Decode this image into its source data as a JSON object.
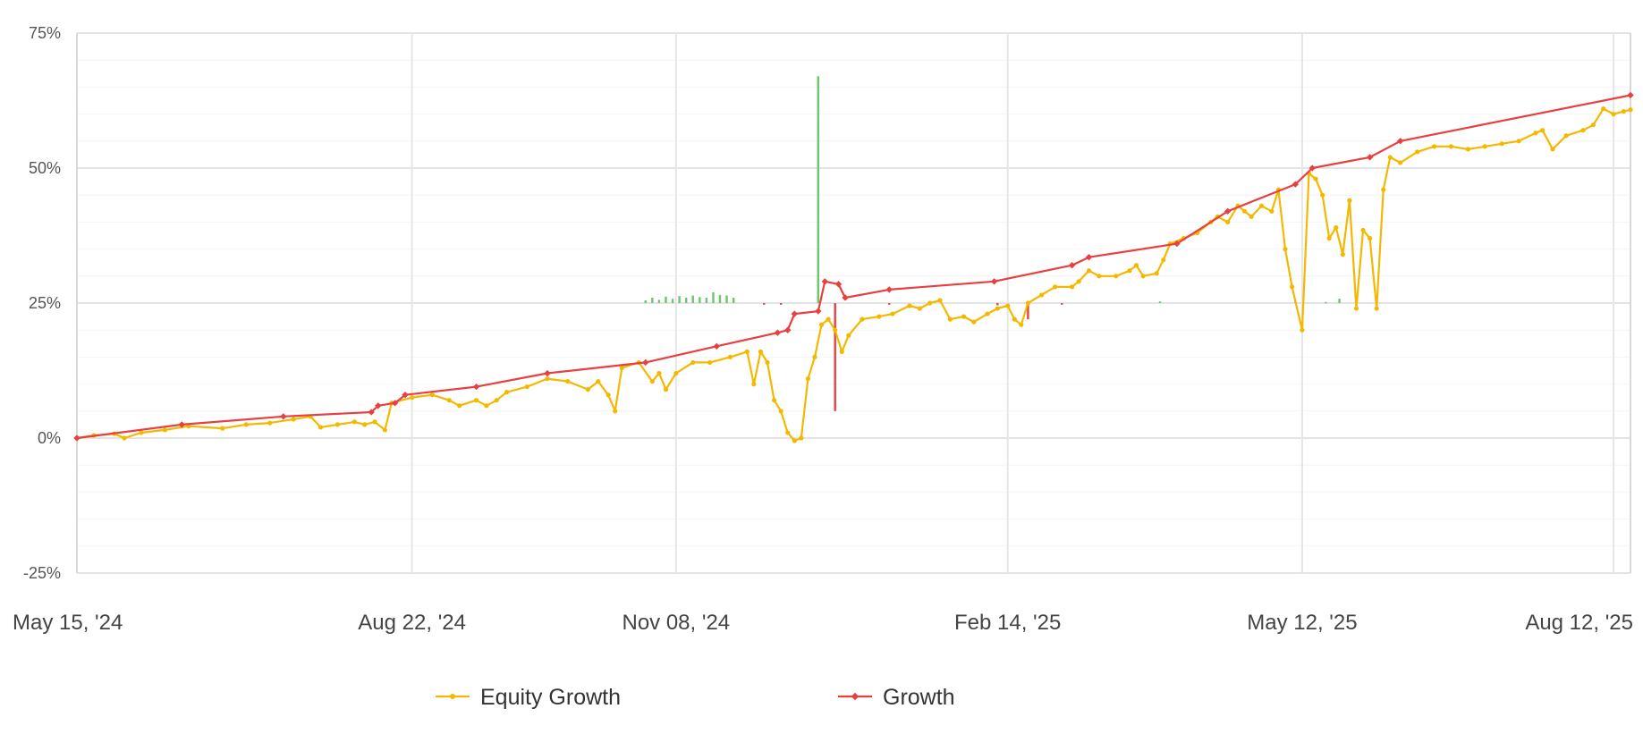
{
  "chart_data": {
    "type": "line",
    "title": "",
    "xlabel": "",
    "ylabel": "",
    "x_range": [
      "2024-05-15",
      "2025-08-17"
    ],
    "ylim": [
      -25,
      75
    ],
    "y_ticks": [
      -25,
      0,
      25,
      50,
      75
    ],
    "y_tick_labels": [
      "-25%",
      "0%",
      "25%",
      "50%",
      "75%"
    ],
    "y_minor_step": 5,
    "x_ticks": [
      "2024-05-15",
      "2024-08-22",
      "2024-11-08",
      "2025-02-14",
      "2025-05-12",
      "2025-08-12"
    ],
    "x_tick_labels": [
      "May 15, '24",
      "Aug 22, '24",
      "Nov 08, '24",
      "Feb 14, '25",
      "May 12, '25",
      "Aug 12, '25"
    ],
    "grid": true,
    "legend_position": "bottom-center",
    "series": [
      {
        "name": "Equity Growth",
        "color": "#f5b800",
        "points": [
          [
            "2024-05-15",
            0
          ],
          [
            "2024-05-20",
            0.5
          ],
          [
            "2024-05-26",
            0.8
          ],
          [
            "2024-05-29",
            0
          ],
          [
            "2024-06-03",
            1
          ],
          [
            "2024-06-10",
            1.5
          ],
          [
            "2024-06-17",
            2.2
          ],
          [
            "2024-06-27",
            1.8
          ],
          [
            "2024-07-04",
            2.5
          ],
          [
            "2024-07-11",
            2.8
          ],
          [
            "2024-07-18",
            3.5
          ],
          [
            "2024-07-23",
            4
          ],
          [
            "2024-07-26",
            2
          ],
          [
            "2024-07-31",
            2.5
          ],
          [
            "2024-08-05",
            3
          ],
          [
            "2024-08-08",
            2.5
          ],
          [
            "2024-08-11",
            3
          ],
          [
            "2024-08-14",
            1.5
          ],
          [
            "2024-08-16",
            6.5
          ],
          [
            "2024-08-22",
            7.5
          ],
          [
            "2024-08-28",
            8
          ],
          [
            "2024-09-02",
            7
          ],
          [
            "2024-09-05",
            6
          ],
          [
            "2024-09-10",
            7
          ],
          [
            "2024-09-13",
            6
          ],
          [
            "2024-09-16",
            7
          ],
          [
            "2024-09-19",
            8.5
          ],
          [
            "2024-09-25",
            9.5
          ],
          [
            "2024-10-01",
            11
          ],
          [
            "2024-10-07",
            10.5
          ],
          [
            "2024-10-13",
            9
          ],
          [
            "2024-10-16",
            10.5
          ],
          [
            "2024-10-19",
            8
          ],
          [
            "2024-10-21",
            5
          ],
          [
            "2024-10-23",
            13
          ],
          [
            "2024-10-28",
            14
          ],
          [
            "2024-11-01",
            10.5
          ],
          [
            "2024-11-03",
            12
          ],
          [
            "2024-11-05",
            9
          ],
          [
            "2024-11-08",
            12
          ],
          [
            "2024-11-13",
            14
          ],
          [
            "2024-11-18",
            14
          ],
          [
            "2024-11-24",
            15
          ],
          [
            "2024-11-29",
            16
          ],
          [
            "2024-12-01",
            10
          ],
          [
            "2024-12-03",
            16
          ],
          [
            "2024-12-05",
            14
          ],
          [
            "2024-12-07",
            7
          ],
          [
            "2024-12-09",
            5
          ],
          [
            "2024-12-11",
            1
          ],
          [
            "2024-12-13",
            -0.5
          ],
          [
            "2024-12-15",
            0
          ],
          [
            "2024-12-17",
            11
          ],
          [
            "2024-12-19",
            15
          ],
          [
            "2024-12-21",
            21
          ],
          [
            "2024-12-23",
            22
          ],
          [
            "2024-12-25",
            20
          ],
          [
            "2024-12-27",
            16
          ],
          [
            "2024-12-29",
            19
          ],
          [
            "2025-01-02",
            22
          ],
          [
            "2025-01-07",
            22.5
          ],
          [
            "2025-01-11",
            23
          ],
          [
            "2025-01-16",
            24.5
          ],
          [
            "2025-01-19",
            24
          ],
          [
            "2025-01-22",
            25
          ],
          [
            "2025-01-25",
            25.5
          ],
          [
            "2025-01-28",
            22
          ],
          [
            "2025-02-01",
            22.5
          ],
          [
            "2025-02-04",
            21.5
          ],
          [
            "2025-02-08",
            23
          ],
          [
            "2025-02-11",
            24
          ],
          [
            "2025-02-14",
            24.5
          ],
          [
            "2025-02-16",
            22
          ],
          [
            "2025-02-18",
            21
          ],
          [
            "2025-02-20",
            25
          ],
          [
            "2025-02-24",
            26.5
          ],
          [
            "2025-02-28",
            28
          ],
          [
            "2025-03-05",
            28
          ],
          [
            "2025-03-07",
            29
          ],
          [
            "2025-03-10",
            31
          ],
          [
            "2025-03-13",
            30
          ],
          [
            "2025-03-18",
            30
          ],
          [
            "2025-03-22",
            31
          ],
          [
            "2025-03-24",
            32
          ],
          [
            "2025-03-26",
            30
          ],
          [
            "2025-03-30",
            30.5
          ],
          [
            "2025-04-01",
            33
          ],
          [
            "2025-04-03",
            36
          ],
          [
            "2025-04-07",
            37
          ],
          [
            "2025-04-11",
            38
          ],
          [
            "2025-04-15",
            40
          ],
          [
            "2025-04-17",
            41
          ],
          [
            "2025-04-20",
            40
          ],
          [
            "2025-04-23",
            43
          ],
          [
            "2025-04-25",
            42
          ],
          [
            "2025-04-27",
            41
          ],
          [
            "2025-04-30",
            43
          ],
          [
            "2025-05-03",
            42
          ],
          [
            "2025-05-05",
            46
          ],
          [
            "2025-05-07",
            35
          ],
          [
            "2025-05-09",
            28
          ],
          [
            "2025-05-12",
            20
          ],
          [
            "2025-05-14",
            49
          ],
          [
            "2025-05-16",
            48
          ],
          [
            "2025-05-18",
            45
          ],
          [
            "2025-05-20",
            37
          ],
          [
            "2025-05-22",
            39
          ],
          [
            "2025-05-24",
            34
          ],
          [
            "2025-05-26",
            44
          ],
          [
            "2025-05-28",
            24
          ],
          [
            "2025-05-30",
            38.5
          ],
          [
            "2025-06-01",
            37
          ],
          [
            "2025-06-03",
            24
          ],
          [
            "2025-06-05",
            46
          ],
          [
            "2025-06-07",
            52
          ],
          [
            "2025-06-10",
            51
          ],
          [
            "2025-06-15",
            53
          ],
          [
            "2025-06-20",
            54
          ],
          [
            "2025-06-25",
            54
          ],
          [
            "2025-06-30",
            53.5
          ],
          [
            "2025-07-05",
            54
          ],
          [
            "2025-07-10",
            54.5
          ],
          [
            "2025-07-15",
            55
          ],
          [
            "2025-07-20",
            56.5
          ],
          [
            "2025-07-22",
            57
          ],
          [
            "2025-07-25",
            53.5
          ],
          [
            "2025-07-29",
            56
          ],
          [
            "2025-08-03",
            57
          ],
          [
            "2025-08-06",
            58
          ],
          [
            "2025-08-09",
            61
          ],
          [
            "2025-08-12",
            60
          ],
          [
            "2025-08-15",
            60.5
          ],
          [
            "2025-08-17",
            60.8
          ]
        ]
      },
      {
        "name": "Growth",
        "color": "#e84040",
        "points": [
          [
            "2024-05-15",
            0
          ],
          [
            "2024-06-15",
            2.5
          ],
          [
            "2024-07-15",
            4
          ],
          [
            "2024-08-10",
            4.8
          ],
          [
            "2024-08-12",
            6
          ],
          [
            "2024-08-17",
            6.5
          ],
          [
            "2024-08-20",
            8
          ],
          [
            "2024-09-10",
            9.5
          ],
          [
            "2024-10-01",
            12
          ],
          [
            "2024-10-30",
            14
          ],
          [
            "2024-11-20",
            17
          ],
          [
            "2024-12-08",
            19.5
          ],
          [
            "2024-12-11",
            20
          ],
          [
            "2024-12-13",
            23
          ],
          [
            "2024-12-20",
            23.5
          ],
          [
            "2024-12-22",
            29
          ],
          [
            "2024-12-26",
            28.5
          ],
          [
            "2024-12-28",
            26
          ],
          [
            "2025-01-10",
            27.5
          ],
          [
            "2025-02-10",
            29
          ],
          [
            "2025-03-05",
            32
          ],
          [
            "2025-03-10",
            33.5
          ],
          [
            "2025-04-05",
            36
          ],
          [
            "2025-04-20",
            42
          ],
          [
            "2025-05-10",
            47
          ],
          [
            "2025-05-15",
            50
          ],
          [
            "2025-06-01",
            52
          ],
          [
            "2025-06-10",
            55
          ],
          [
            "2025-08-17",
            63.5
          ]
        ]
      }
    ],
    "bars": [
      [
        "2024-10-30",
        0.5
      ],
      [
        "2024-11-01",
        1.0
      ],
      [
        "2024-11-03",
        0.6
      ],
      [
        "2024-11-05",
        1.2
      ],
      [
        "2024-11-07",
        0.8
      ],
      [
        "2024-11-09",
        1.3
      ],
      [
        "2024-11-11",
        1.0
      ],
      [
        "2024-11-13",
        1.4
      ],
      [
        "2024-11-15",
        1.1
      ],
      [
        "2024-11-17",
        1.0
      ],
      [
        "2024-11-19",
        2.0
      ],
      [
        "2024-11-21",
        1.5
      ],
      [
        "2024-11-23",
        1.4
      ],
      [
        "2024-11-25",
        1.0
      ],
      [
        "2024-12-04",
        -0.3
      ],
      [
        "2024-12-09",
        -0.3
      ],
      [
        "2024-12-20",
        42
      ],
      [
        "2024-12-25",
        -20
      ],
      [
        "2025-01-10",
        -0.3
      ],
      [
        "2025-02-11",
        -0.4
      ],
      [
        "2025-02-20",
        -3
      ],
      [
        "2025-03-02",
        -0.3
      ],
      [
        "2025-03-31",
        0.3
      ],
      [
        "2025-05-10",
        0.3
      ],
      [
        "2025-05-19",
        0.2
      ],
      [
        "2025-05-23",
        0.8
      ]
    ]
  },
  "legend": {
    "items": [
      {
        "label": "Equity Growth",
        "color": "#f5b800"
      },
      {
        "label": "Growth",
        "color": "#e84040"
      }
    ]
  }
}
